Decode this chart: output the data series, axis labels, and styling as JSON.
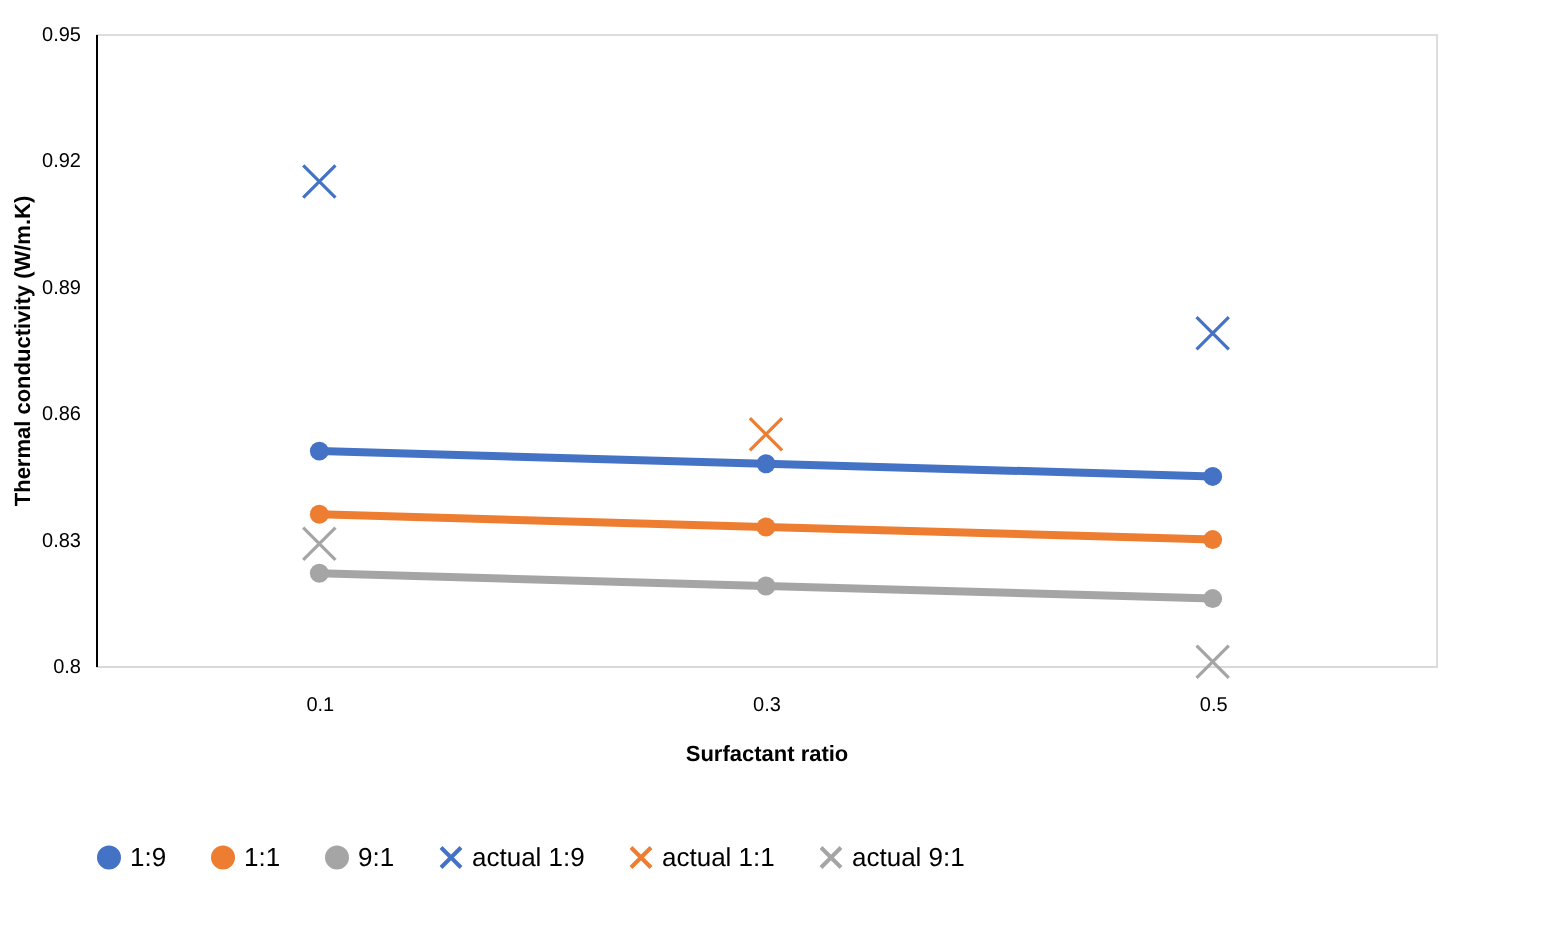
{
  "chart_data": {
    "type": "line",
    "xlabel": "Surfactant ratio",
    "ylabel": "Thermal conductivity (W/m.K)",
    "categories": [
      "0.1",
      "0.3",
      "0.5"
    ],
    "ylim": [
      0.8,
      0.95
    ],
    "yticks": [
      0.8,
      0.83,
      0.86,
      0.89,
      0.92,
      0.95
    ],
    "grid": false,
    "legend": "bottom",
    "series": [
      {
        "name": "1:9",
        "type": "line",
        "marker": "circle",
        "color": "#4472c4",
        "values": [
          0.851,
          0.848,
          0.845
        ]
      },
      {
        "name": "1:1",
        "type": "line",
        "marker": "circle",
        "color": "#ed7d31",
        "values": [
          0.836,
          0.833,
          0.83
        ]
      },
      {
        "name": "9:1",
        "type": "line",
        "marker": "circle",
        "color": "#a5a5a5",
        "values": [
          0.822,
          0.819,
          0.816
        ]
      },
      {
        "name": "actual 1:9",
        "type": "scatter",
        "marker": "cross",
        "color": "#4472c4",
        "values": [
          0.915,
          null,
          0.879
        ]
      },
      {
        "name": "actual 1:1",
        "type": "scatter",
        "marker": "cross",
        "color": "#ed7d31",
        "values": [
          null,
          0.855,
          null
        ]
      },
      {
        "name": "actual 9:1",
        "type": "scatter",
        "marker": "cross",
        "color": "#a5a5a5",
        "values": [
          0.829,
          null,
          0.801
        ]
      }
    ]
  }
}
